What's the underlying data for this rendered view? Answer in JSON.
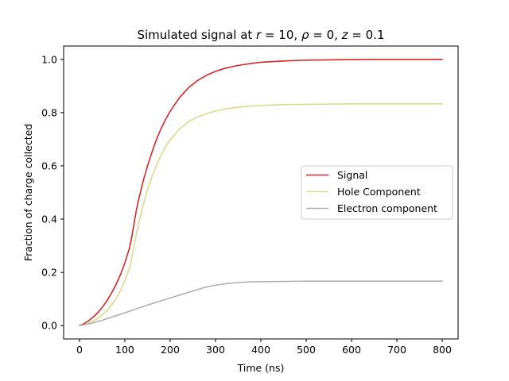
{
  "chart_data": {
    "type": "line",
    "title": "Simulated signal at r = 10, ρ = 0, z = 0.1",
    "title_parts": {
      "prefix": "Simulated signal at ",
      "r_sym": "r",
      "r_eq": " = 10, ",
      "rho_sym": "ρ",
      "rho_eq": " = 0, ",
      "z_sym": "z",
      "z_eq": " = 0.1"
    },
    "xlabel": "Time (ns)",
    "ylabel": "Fraction of charge collected",
    "xlim": [
      -35,
      835
    ],
    "ylim": [
      -0.05,
      1.05
    ],
    "xticks": [
      0,
      100,
      200,
      300,
      400,
      500,
      600,
      700,
      800
    ],
    "xtick_labels": [
      "0",
      "100",
      "200",
      "300",
      "400",
      "500",
      "600",
      "700",
      "800"
    ],
    "yticks": [
      0.0,
      0.2,
      0.4,
      0.6,
      0.8,
      1.0
    ],
    "ytick_labels": [
      "0.0",
      "0.2",
      "0.4",
      "0.6",
      "0.8",
      "1.0"
    ],
    "legend_position": "center-right",
    "grid": false,
    "series": [
      {
        "name": "Signal",
        "color": "#d62728",
        "x": [
          0,
          10,
          20,
          30,
          40,
          50,
          60,
          70,
          80,
          90,
          100,
          110,
          115,
          120,
          125,
          130,
          140,
          150,
          160,
          170,
          180,
          190,
          200,
          220,
          240,
          260,
          280,
          300,
          320,
          340,
          360,
          380,
          400,
          450,
          500,
          550,
          600,
          650,
          700,
          750,
          800
        ],
        "y": [
          0.0,
          0.007,
          0.018,
          0.032,
          0.048,
          0.068,
          0.092,
          0.12,
          0.152,
          0.19,
          0.235,
          0.29,
          0.33,
          0.38,
          0.43,
          0.47,
          0.54,
          0.6,
          0.652,
          0.7,
          0.74,
          0.775,
          0.805,
          0.855,
          0.893,
          0.92,
          0.94,
          0.955,
          0.966,
          0.974,
          0.98,
          0.985,
          0.989,
          0.994,
          0.997,
          0.998,
          0.999,
          1.0,
          1.0,
          1.0,
          1.0
        ]
      },
      {
        "name": "Hole Component",
        "color": "#dbdb8d",
        "x": [
          0,
          10,
          20,
          30,
          40,
          50,
          60,
          70,
          80,
          90,
          100,
          110,
          115,
          120,
          125,
          130,
          140,
          150,
          160,
          170,
          180,
          190,
          200,
          220,
          240,
          260,
          280,
          300,
          320,
          340,
          360,
          380,
          400,
          450,
          500,
          550,
          600,
          650,
          700,
          750,
          800
        ],
        "y": [
          0.0,
          0.003,
          0.009,
          0.017,
          0.027,
          0.04,
          0.056,
          0.076,
          0.1,
          0.13,
          0.168,
          0.215,
          0.25,
          0.295,
          0.34,
          0.38,
          0.45,
          0.51,
          0.56,
          0.603,
          0.64,
          0.672,
          0.698,
          0.738,
          0.765,
          0.783,
          0.796,
          0.806,
          0.813,
          0.818,
          0.822,
          0.825,
          0.827,
          0.83,
          0.831,
          0.832,
          0.833,
          0.833,
          0.833,
          0.833,
          0.833
        ]
      },
      {
        "name": "Electron component",
        "color": "#b0b0b0",
        "x": [
          0,
          25,
          50,
          75,
          100,
          125,
          150,
          175,
          200,
          225,
          250,
          275,
          300,
          325,
          350,
          375,
          400,
          450,
          500,
          550,
          600,
          650,
          700,
          750,
          800
        ],
        "y": [
          0.0,
          0.008,
          0.02,
          0.034,
          0.048,
          0.063,
          0.077,
          0.091,
          0.104,
          0.117,
          0.13,
          0.143,
          0.152,
          0.158,
          0.162,
          0.164,
          0.165,
          0.166,
          0.167,
          0.167,
          0.167,
          0.167,
          0.167,
          0.167,
          0.167
        ]
      }
    ]
  }
}
